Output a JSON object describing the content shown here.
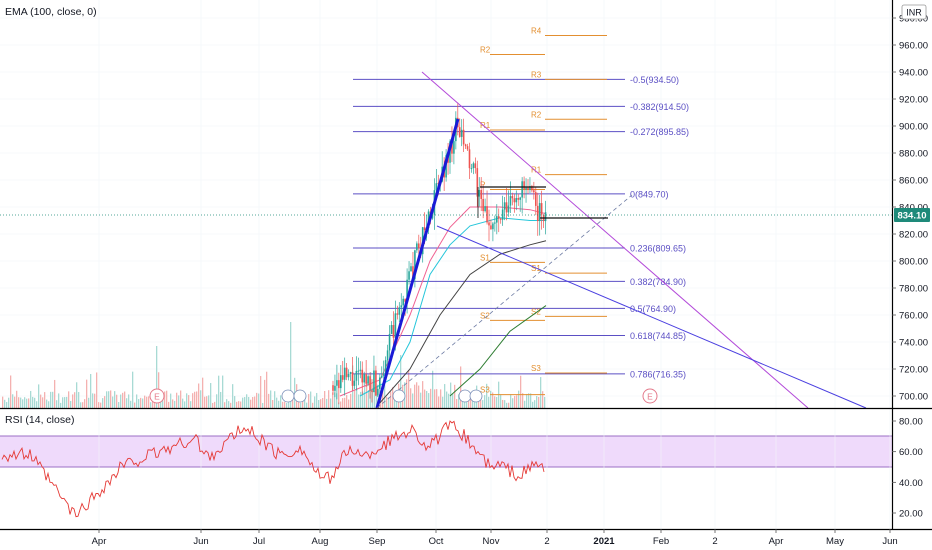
{
  "main": {
    "indicator_label": "EMA (100, close, 0)",
    "currency": "INR",
    "last_price": "834.10",
    "price_ticks": [
      "980.00",
      "960.00",
      "940.00",
      "920.00",
      "900.00",
      "880.00",
      "860.00",
      "840.00",
      "820.00",
      "800.00",
      "780.00",
      "760.00",
      "740.00",
      "720.00",
      "700.00"
    ],
    "fib_levels": [
      {
        "label": "-0.5(934.50)",
        "value": 934.5
      },
      {
        "label": "-0.382(914.50)",
        "value": 914.5
      },
      {
        "label": "-0.272(895.85)",
        "value": 895.85
      },
      {
        "label": "0(849.70)",
        "value": 849.7
      },
      {
        "label": "0.236(809.65)",
        "value": 809.65
      },
      {
        "label": "0.382(784.90)",
        "value": 784.9
      },
      {
        "label": "0.5(764.90)",
        "value": 764.9
      },
      {
        "label": "0.618(744.85)",
        "value": 744.85
      },
      {
        "label": "0.786(716.35)",
        "value": 716.35
      }
    ],
    "pivot_labels": {
      "R4": "R4",
      "R3": "R3",
      "R2": "R2",
      "R1": "R1",
      "P": "P",
      "S1": "S1",
      "S2": "S2",
      "S3": "S3"
    },
    "earnings_marker": "E"
  },
  "rsi": {
    "label": "RSI (14, close)",
    "ticks": [
      "80.00",
      "60.00",
      "40.00",
      "20.00"
    ]
  },
  "time_axis": [
    "Apr",
    "Jun",
    "Jul",
    "Aug",
    "Sep",
    "Oct",
    "Nov",
    "2",
    "2021",
    "Feb",
    "2",
    "Apr",
    "May",
    "Jun"
  ],
  "colors": {
    "fib": "#5b4fc4",
    "pivot": "#e38f30",
    "trend_purple": "#b34ad9",
    "trend_blue": "#4a3fe0",
    "impulse": "#1a1ad6",
    "rsi_band": "#efdafb",
    "rsi_line": "#e53935",
    "price_tag": "#1e8a7a",
    "up": "#26a69a",
    "down": "#ef5350"
  },
  "chart_data": [
    {
      "type": "line",
      "title": "EMA (100, close, 0)",
      "ylim": [
        693,
        984
      ],
      "x": [
        "Apr",
        "Jun",
        "Jul",
        "Aug",
        "Sep",
        "Oct",
        "Nov",
        "2",
        "2021",
        "Feb",
        "2",
        "Apr",
        "May",
        "Jun"
      ],
      "series": [
        {
          "name": "EMA (100, close, 0)",
          "values": [
            null,
            null,
            null,
            null,
            705,
            722,
            765,
            790,
            null,
            null,
            null,
            null,
            null,
            null
          ]
        }
      ],
      "annotations": [
        "-0.5(934.50)",
        "-0.382(914.50)",
        "-0.272(895.85)",
        "0(849.70)",
        "0.236(809.65)",
        "0.382(784.90)",
        "0.5(764.90)",
        "0.618(744.85)",
        "0.786(716.35)"
      ]
    },
    {
      "type": "line",
      "title": "RSI (14, close)",
      "ylim": [
        12,
        88
      ],
      "series": [
        {
          "name": "RSI (14, close)",
          "values": [
            58,
            28,
            64,
            68,
            74,
            72,
            48,
            50,
            null,
            null,
            null,
            null,
            null,
            null
          ]
        }
      ],
      "band": [
        50,
        70
      ]
    }
  ]
}
